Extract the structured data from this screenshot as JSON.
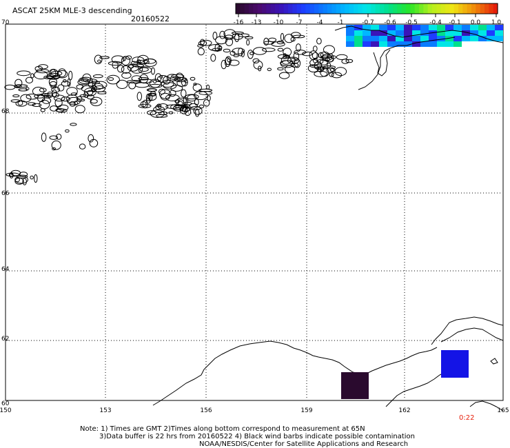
{
  "header": {
    "title": "ASCAT 25KM MLE-3 descending",
    "date": "20160522"
  },
  "colorbar": {
    "tick_labels": [
      "-16",
      "-13",
      "-10",
      "-7",
      "-4",
      "-1",
      "-0.7",
      "-0.6",
      "-0.5",
      "-0.4",
      "-0.1",
      "0.0",
      "1.0"
    ],
    "colors": [
      "#2a0a2e",
      "#4b0a6e",
      "#3a14b8",
      "#1e3cff",
      "#0a7cff",
      "#00b8ff",
      "#00e6e6",
      "#00e08c",
      "#28e628",
      "#b4f01e",
      "#f0e614",
      "#f08c0a",
      "#e61e0a"
    ]
  },
  "axes": {
    "lat_labels": [
      "70",
      "68",
      "66",
      "64",
      "62",
      "60"
    ],
    "lon_labels": [
      "150",
      "153",
      "156",
      "159",
      "162",
      "165"
    ]
  },
  "data_cells": [
    {
      "color": "#2a0a2e"
    },
    {
      "color": "#1414e6"
    },
    {
      "swath_palette": [
        "#00b8ff",
        "#00e6e6",
        "#0a7cff",
        "#1e3cff",
        "#00e08c",
        "#3a14b8"
      ]
    }
  ],
  "time_label": {
    "text": "0:22",
    "color": "#e61e0a"
  },
  "notes": {
    "line1": "Note: 1) Times are GMT 2)Times along bottom correspond to measurement at 65N",
    "line2": "3)Data buffer is 22 hrs from 20160522 4) Black wind barbs indicate possible contamination",
    "line3": "NOAA/NESDIS/Center for Satellite Applications and Research"
  }
}
